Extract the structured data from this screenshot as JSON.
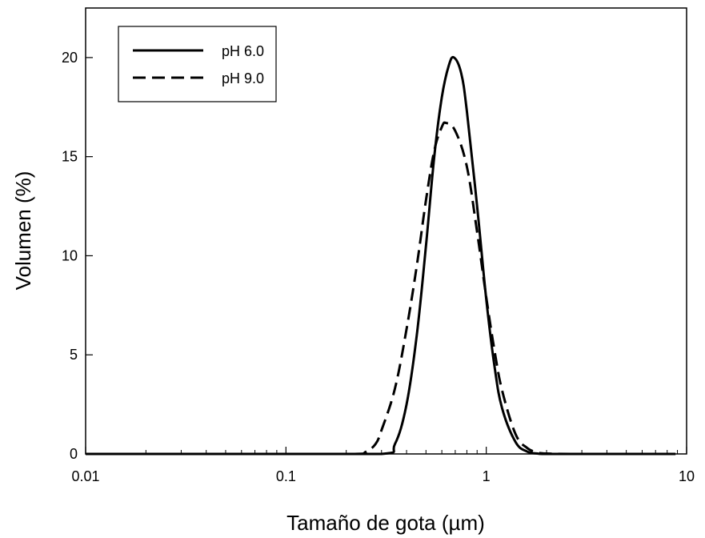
{
  "chart_data": {
    "type": "line",
    "xlabel": "Tamaño de gota (µm)",
    "ylabel": "Volumen (%)",
    "xscale": "log",
    "xlim": [
      0.01,
      10
    ],
    "ylim": [
      0,
      22.5
    ],
    "xticks": [
      {
        "value": 0.01,
        "label": "0.01"
      },
      {
        "value": 0.1,
        "label": "0.1"
      },
      {
        "value": 1,
        "label": "1"
      },
      {
        "value": 10,
        "label": "10"
      }
    ],
    "yticks": [
      {
        "value": 0,
        "label": "0"
      },
      {
        "value": 5,
        "label": "5"
      },
      {
        "value": 10,
        "label": "10"
      },
      {
        "value": 15,
        "label": "15"
      },
      {
        "value": 20,
        "label": "20"
      }
    ],
    "grid": false,
    "legend": "top-left",
    "series": [
      {
        "name": "pH 6.0",
        "style": "solid",
        "color": "#000000",
        "x": [
          0.01,
          0.1,
          0.3,
          0.35,
          0.4,
          0.45,
          0.5,
          0.55,
          0.6,
          0.65,
          0.69,
          0.75,
          0.8,
          0.9,
          1.0,
          1.1,
          1.2,
          1.4,
          1.6,
          1.8,
          2.0,
          3.0,
          8.8
        ],
        "y": [
          0,
          0,
          0,
          0.5,
          2.5,
          6.0,
          10.5,
          15.0,
          18.0,
          19.6,
          20.0,
          19.2,
          17.3,
          12.5,
          7.8,
          4.4,
          2.3,
          0.6,
          0.12,
          0.02,
          0,
          0,
          0
        ]
      },
      {
        "name": "pH 9.0",
        "style": "dashed",
        "color": "#000000",
        "x": [
          0.01,
          0.1,
          0.22,
          0.25,
          0.28,
          0.3,
          0.35,
          0.4,
          0.45,
          0.5,
          0.55,
          0.6,
          0.63,
          0.7,
          0.8,
          0.9,
          1.0,
          1.1,
          1.2,
          1.4,
          1.6,
          1.8,
          2.0,
          3.0,
          8.8
        ],
        "y": [
          0,
          0,
          0,
          0.1,
          0.5,
          1.2,
          3.3,
          6.3,
          9.5,
          12.8,
          15.3,
          16.5,
          16.7,
          16.3,
          14.5,
          11.2,
          7.9,
          5.2,
          3.2,
          1.0,
          0.3,
          0.08,
          0.02,
          0,
          0
        ]
      }
    ]
  }
}
